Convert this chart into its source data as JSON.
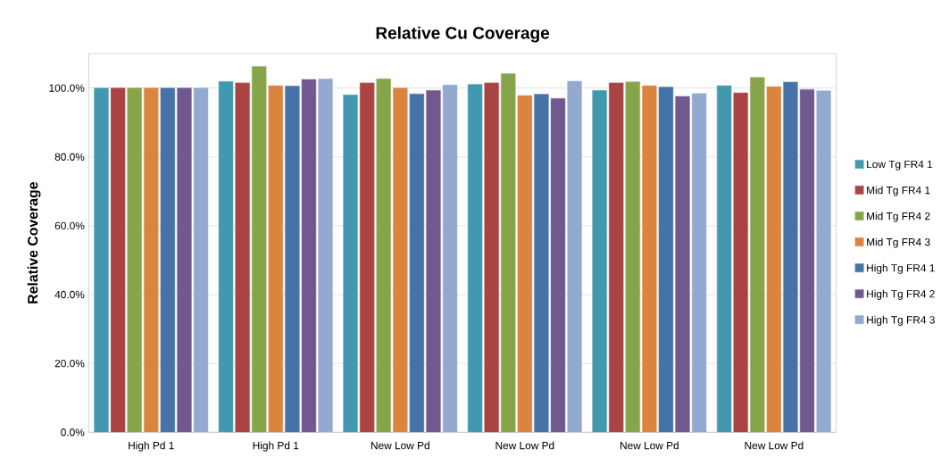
{
  "chart_data": {
    "type": "bar",
    "title": "Relative Cu Coverage",
    "ylabel": "Relative Coverage",
    "categories": [
      "High Pd 1",
      "High Pd 1",
      "New Low Pd",
      "New Low Pd",
      "New Low Pd",
      "New Low Pd"
    ],
    "series": [
      {
        "name": "Low Tg FR4 1",
        "color": "#4198af",
        "values": [
          100,
          101.9,
          98.0,
          101.1,
          99.3,
          100.7
        ]
      },
      {
        "name": "Mid Tg FR4 1",
        "color": "#a94442",
        "values": [
          100,
          101.5,
          101.5,
          101.5,
          101.5,
          98.6
        ]
      },
      {
        "name": "Mid Tg FR4 2",
        "color": "#86a44a",
        "values": [
          100,
          106.3,
          102.7,
          104.2,
          101.8,
          103.1
        ]
      },
      {
        "name": "Mid Tg FR4 3",
        "color": "#db843d",
        "values": [
          100,
          100.7,
          100,
          97.8,
          100.7,
          100.4
        ]
      },
      {
        "name": "High Tg FR4 1",
        "color": "#4572a7",
        "values": [
          100,
          100.6,
          98.3,
          98.2,
          100.3,
          101.8
        ]
      },
      {
        "name": "High Tg FR4 2",
        "color": "#71588f",
        "values": [
          100,
          102.5,
          99.3,
          97.0,
          97.6,
          99.6
        ]
      },
      {
        "name": "High Tg FR4 3",
        "color": "#93a9d0",
        "values": [
          100,
          102.7,
          100.9,
          102.0,
          98.4,
          99.2
        ]
      }
    ],
    "ylim": [
      0,
      110
    ],
    "yticks": [
      {
        "value": 0,
        "label": "0.0%"
      },
      {
        "value": 20,
        "label": "20.0%"
      },
      {
        "value": 40,
        "label": "40.0%"
      },
      {
        "value": 60,
        "label": "60.0%"
      },
      {
        "value": 80,
        "label": "80.0%"
      },
      {
        "value": 100,
        "label": "100.0%"
      }
    ],
    "grid": "y",
    "legend": "right"
  }
}
